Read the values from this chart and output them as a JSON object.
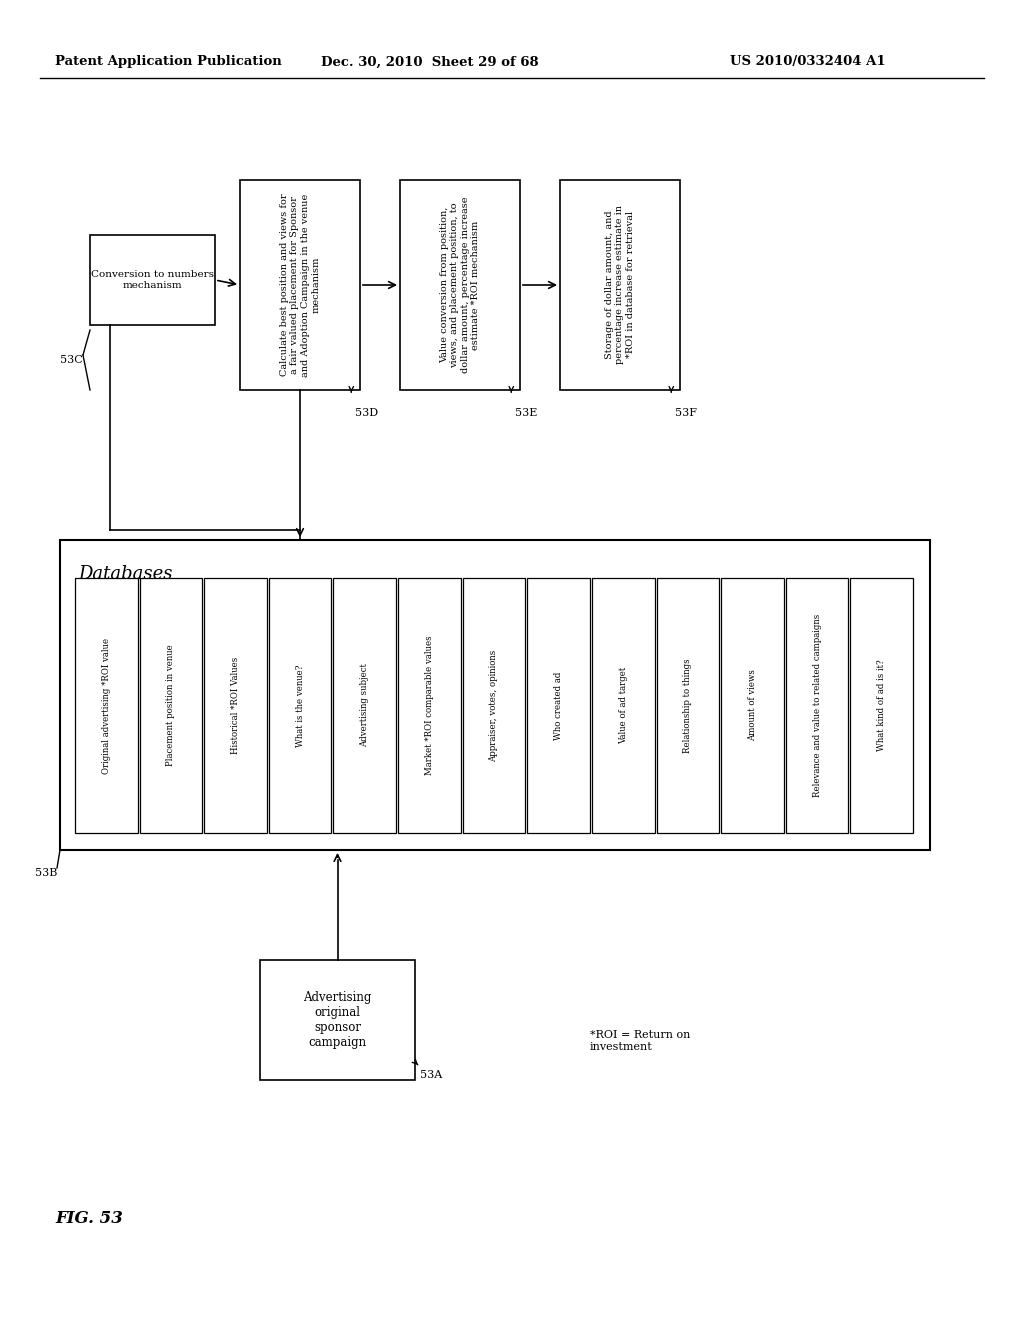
{
  "header_left": "Patent Application Publication",
  "header_mid": "Dec. 30, 2010  Sheet 29 of 68",
  "header_right": "US 2010/0332404 A1",
  "fig_label": "FIG. 53",
  "bg_color": "#ffffff",
  "db_title": "Databases",
  "db_items": [
    "Original advertising *ROI value",
    "Placement position in venue",
    "Historical *ROI Values",
    "What is the venue?",
    "Advertising subject",
    "Market *ROI comparable values",
    "Appraiser, votes, opinions",
    "Who created ad",
    "Value of ad target",
    "Relationship to things",
    "Amount of views",
    "Relevance and value to related campaigns",
    "What kind of ad is it?"
  ],
  "bottom_box_label": "Advertising\noriginal\nsponsor\ncampaign",
  "footnote": "*ROI = Return on\ninvestment"
}
